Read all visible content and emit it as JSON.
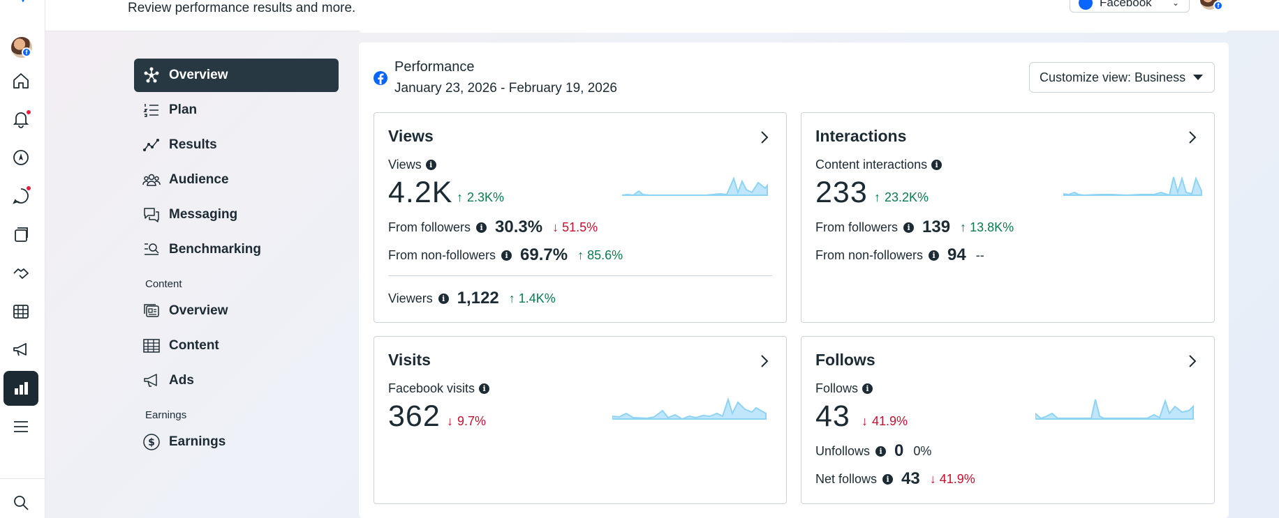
{
  "header": {
    "subtitle": "Review performance results and more.",
    "account_select": "Facebook"
  },
  "nav": {
    "items": [
      {
        "label": "Overview",
        "icon": "overview-icon"
      },
      {
        "label": "Plan",
        "icon": "plan-icon"
      },
      {
        "label": "Results",
        "icon": "results-icon"
      },
      {
        "label": "Audience",
        "icon": "audience-icon"
      },
      {
        "label": "Messaging",
        "icon": "messaging-icon"
      },
      {
        "label": "Benchmarking",
        "icon": "benchmarking-icon"
      }
    ],
    "content_section": "Content",
    "content_items": [
      {
        "label": "Overview",
        "icon": "content-overview-icon"
      },
      {
        "label": "Content",
        "icon": "content-table-icon"
      },
      {
        "label": "Ads",
        "icon": "ads-icon"
      }
    ],
    "earnings_section": "Earnings",
    "earnings_items": [
      {
        "label": "Earnings",
        "icon": "dollar-icon"
      }
    ]
  },
  "performance": {
    "title": "Performance",
    "date_range": "January 23, 2026 - February 19, 2026",
    "customize_label": "Customize view: Business"
  },
  "cards": {
    "views": {
      "title": "Views",
      "metric_label": "Views",
      "value": "4.2K",
      "delta": "2.3K%",
      "from_followers_label": "From followers",
      "from_followers_value": "30.3%",
      "from_followers_delta": "51.5%",
      "from_nonfollowers_label": "From non-followers",
      "from_nonfollowers_value": "69.7%",
      "from_nonfollowers_delta": "85.6%",
      "viewers_label": "Viewers",
      "viewers_value": "1,122",
      "viewers_delta": "1.4K%"
    },
    "interactions": {
      "title": "Interactions",
      "metric_label": "Content interactions",
      "value": "233",
      "delta": "23.2K%",
      "from_followers_label": "From followers",
      "from_followers_value": "139",
      "from_followers_delta": "13.8K%",
      "from_nonfollowers_label": "From non-followers",
      "from_nonfollowers_value": "94",
      "from_nonfollowers_delta": "--"
    },
    "visits": {
      "title": "Visits",
      "metric_label": "Facebook visits",
      "value": "362",
      "delta": "9.7%"
    },
    "follows": {
      "title": "Follows",
      "metric_label": "Follows",
      "value": "43",
      "delta": "41.9%",
      "unfollows_label": "Unfollows",
      "unfollows_value": "0",
      "unfollows_delta": "0%",
      "net_label": "Net follows",
      "net_value": "43",
      "net_delta": "41.9%"
    }
  },
  "colors": {
    "up": "#0a7a4f",
    "down": "#c8102e",
    "spark": "#8fd3f4",
    "active_nav": "#283843",
    "fb_blue": "#0866ff"
  }
}
